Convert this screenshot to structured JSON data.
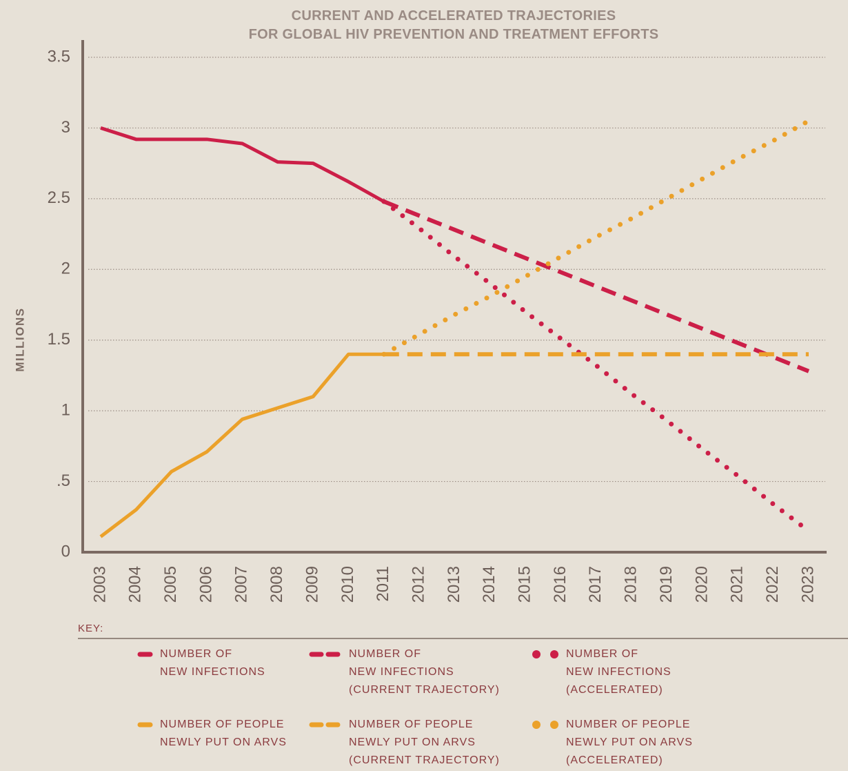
{
  "chart_data": {
    "type": "line",
    "title": "CURRENT AND ACCELERATED TRAJECTORIES\nFOR GLOBAL HIV PREVENTION AND TREATMENT EFFORTS",
    "y_label": "MILLIONS",
    "legend_title": "KEY:",
    "categories": [
      "2003",
      "2004",
      "2005",
      "2006",
      "2007",
      "2008",
      "2009",
      "2010",
      "2011",
      "2012",
      "2013",
      "2014",
      "2015",
      "2016",
      "2017",
      "2018",
      "2019",
      "2020",
      "2021",
      "2022",
      "2023"
    ],
    "ylim": [
      0,
      3.5
    ],
    "yticks": [
      0,
      {
        "value": 0.5,
        "label": ".5"
      },
      1,
      1.5,
      2,
      2.5,
      3,
      3.5
    ],
    "grid": true,
    "series": [
      {
        "name": "NUMBER OF\nNEW INFECTIONS",
        "color": "#cc1f48",
        "style": "solid",
        "values": [
          3.0,
          2.92,
          2.92,
          2.92,
          2.89,
          2.76,
          2.75,
          2.62,
          2.48,
          null,
          null,
          null,
          null,
          null,
          null,
          null,
          null,
          null,
          null,
          null,
          null
        ]
      },
      {
        "name": "NUMBER OF\nNEW INFECTIONS\n(CURRENT TRAJECTORY)",
        "color": "#cc1f48",
        "style": "dashed",
        "values": [
          null,
          null,
          null,
          null,
          null,
          null,
          null,
          null,
          2.48,
          2.38,
          2.28,
          2.18,
          2.08,
          1.98,
          1.88,
          1.78,
          1.68,
          1.58,
          1.48,
          1.38,
          1.28
        ]
      },
      {
        "name": "NUMBER OF\nNEW INFECTIONS\n(ACCELERATED)",
        "color": "#cc1f48",
        "style": "dotted",
        "values": [
          null,
          null,
          null,
          null,
          null,
          null,
          null,
          null,
          2.48,
          2.29,
          2.09,
          1.9,
          1.7,
          1.51,
          1.32,
          1.12,
          0.93,
          0.73,
          0.54,
          0.34,
          0.15
        ]
      },
      {
        "name": "NUMBER OF PEOPLE\nNEWLY PUT ON ARVS",
        "color": "#eba12a",
        "style": "solid",
        "values": [
          0.11,
          0.3,
          0.57,
          0.71,
          0.94,
          1.02,
          1.1,
          1.4,
          1.4,
          null,
          null,
          null,
          null,
          null,
          null,
          null,
          null,
          null,
          null,
          null,
          null
        ]
      },
      {
        "name": "NUMBER OF PEOPLE\nNEWLY PUT ON ARVS\n(CURRENT TRAJECTORY)",
        "color": "#eba12a",
        "style": "dashed",
        "values": [
          null,
          null,
          null,
          null,
          null,
          null,
          null,
          null,
          1.4,
          1.4,
          1.4,
          1.4,
          1.4,
          1.4,
          1.4,
          1.4,
          1.4,
          1.4,
          1.4,
          1.4,
          1.4
        ]
      },
      {
        "name": "NUMBER OF PEOPLE\nNEWLY PUT ON ARVS\n(ACCELERATED)",
        "color": "#eba12a",
        "style": "dotted",
        "values": [
          null,
          null,
          null,
          null,
          null,
          null,
          null,
          null,
          1.4,
          1.54,
          1.68,
          1.81,
          1.95,
          2.09,
          2.23,
          2.36,
          2.5,
          2.64,
          2.78,
          2.91,
          3.05
        ]
      }
    ]
  }
}
